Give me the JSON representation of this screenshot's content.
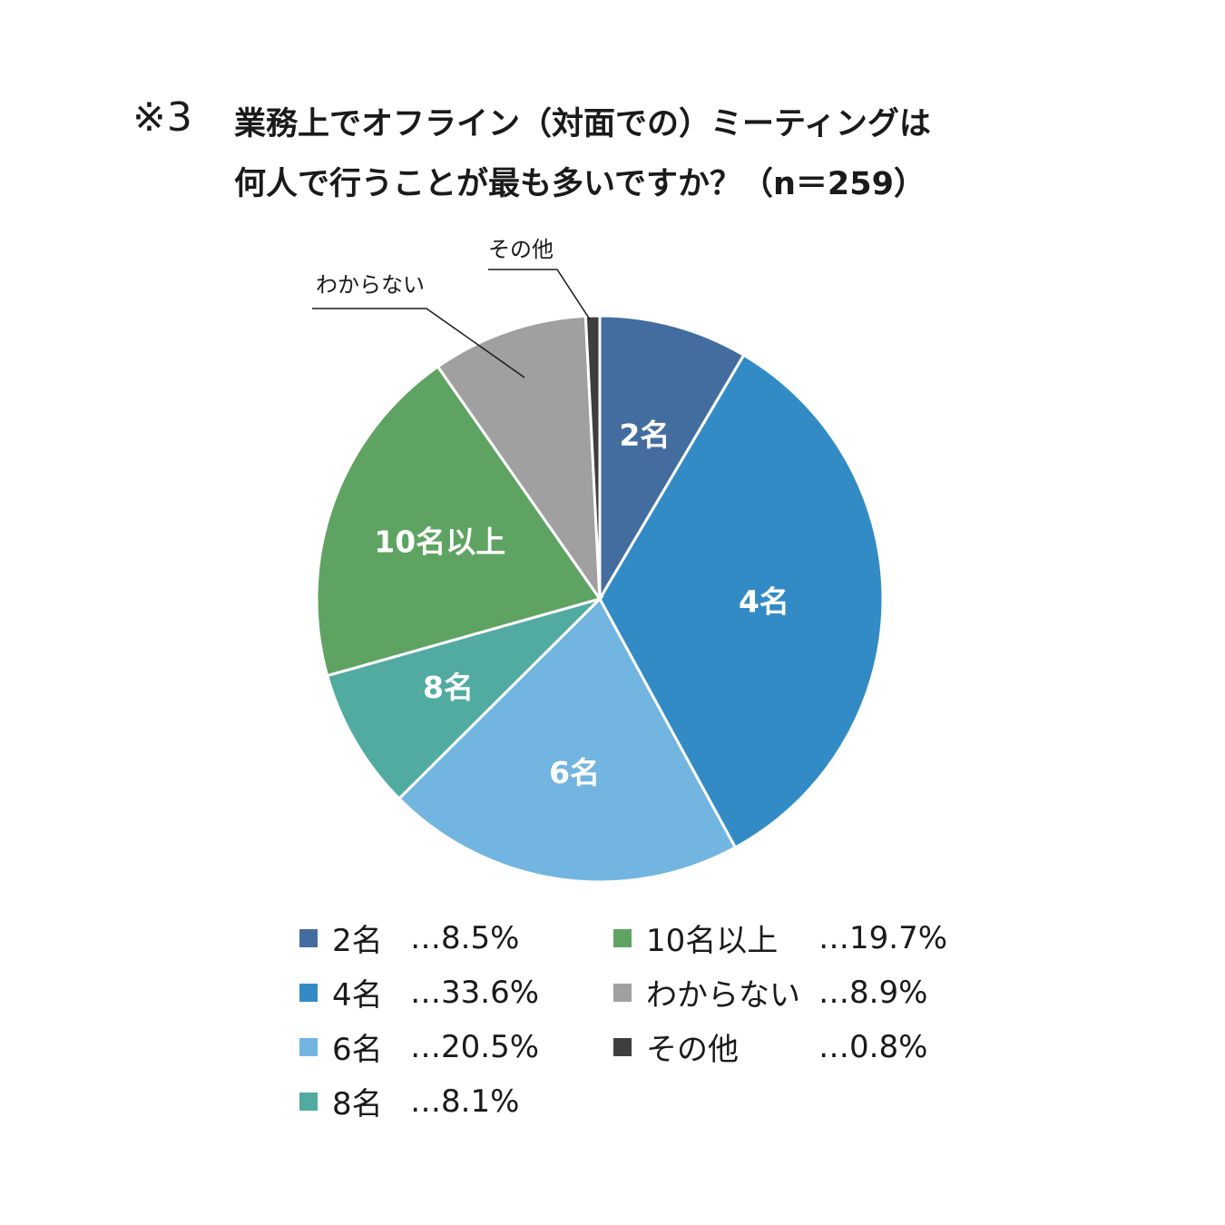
{
  "title": {
    "note": "※3",
    "line1": "業務上でオフライン（対面での）ミーティングは",
    "line2": "何人で行うことが最も多いですか？（n＝259）"
  },
  "chart_data": {
    "type": "pie",
    "n": 259,
    "slices": [
      {
        "label": "2名",
        "value": 8.5,
        "value_label": "…8.5%",
        "color": "#436d9f",
        "pie_label": "2名"
      },
      {
        "label": "4名",
        "value": 33.6,
        "value_label": "…33.6%",
        "color": "#338bc5",
        "pie_label": "4名"
      },
      {
        "label": "6名",
        "value": 20.5,
        "value_label": "…20.5%",
        "color": "#71b5e0",
        "pie_label": "6名"
      },
      {
        "label": "8名",
        "value": 8.1,
        "value_label": "…8.1%",
        "color": "#52aba0",
        "pie_label": "8名"
      },
      {
        "label": "10名以上",
        "value": 19.7,
        "value_label": "…19.7%",
        "color": "#5ea362",
        "pie_label": "10名以上"
      },
      {
        "label": "わからない",
        "value": 8.9,
        "value_label": "…8.9%",
        "color": "#a0a0a0",
        "pie_label": "わからない"
      },
      {
        "label": "その他",
        "value": 0.8,
        "value_label": "…0.8%",
        "color": "#3e3e3e",
        "pie_label": "その他"
      }
    ]
  }
}
